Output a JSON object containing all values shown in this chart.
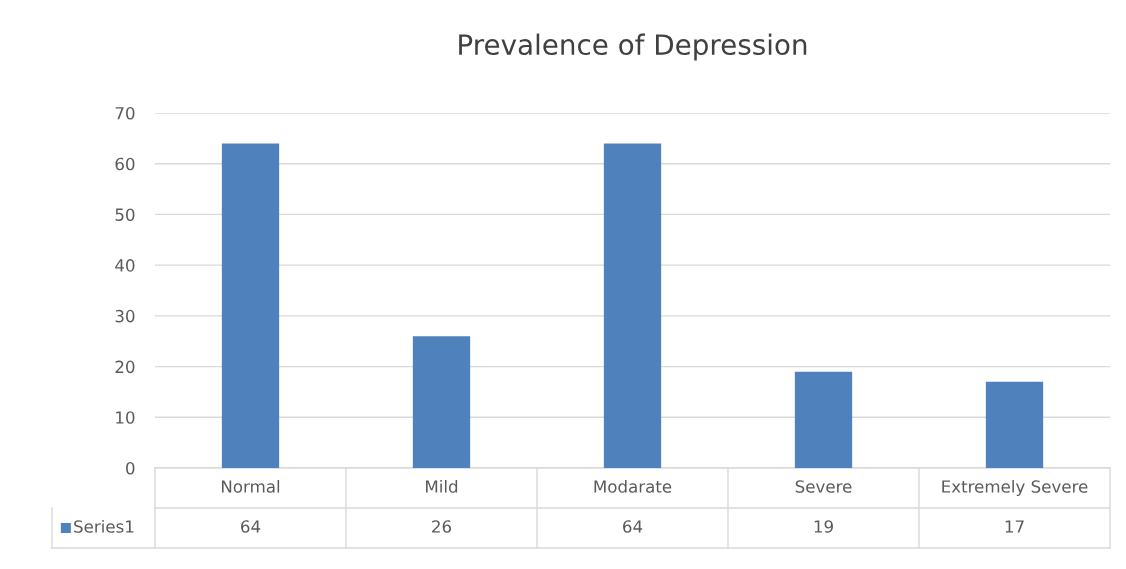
{
  "chart_data": {
    "type": "bar",
    "title": "Prevalence of Depression",
    "categories": [
      "Normal",
      "Mild",
      "Modarate",
      "Severe",
      "Extremely Severe"
    ],
    "series": [
      {
        "name": "Series1",
        "color": "#4f81bd",
        "values": [
          64,
          26,
          64,
          19,
          17
        ]
      }
    ],
    "ylim": [
      0,
      70
    ],
    "yticks": [
      0,
      10,
      20,
      30,
      40,
      50,
      60,
      70
    ],
    "grid": "y",
    "data_labels": true
  }
}
